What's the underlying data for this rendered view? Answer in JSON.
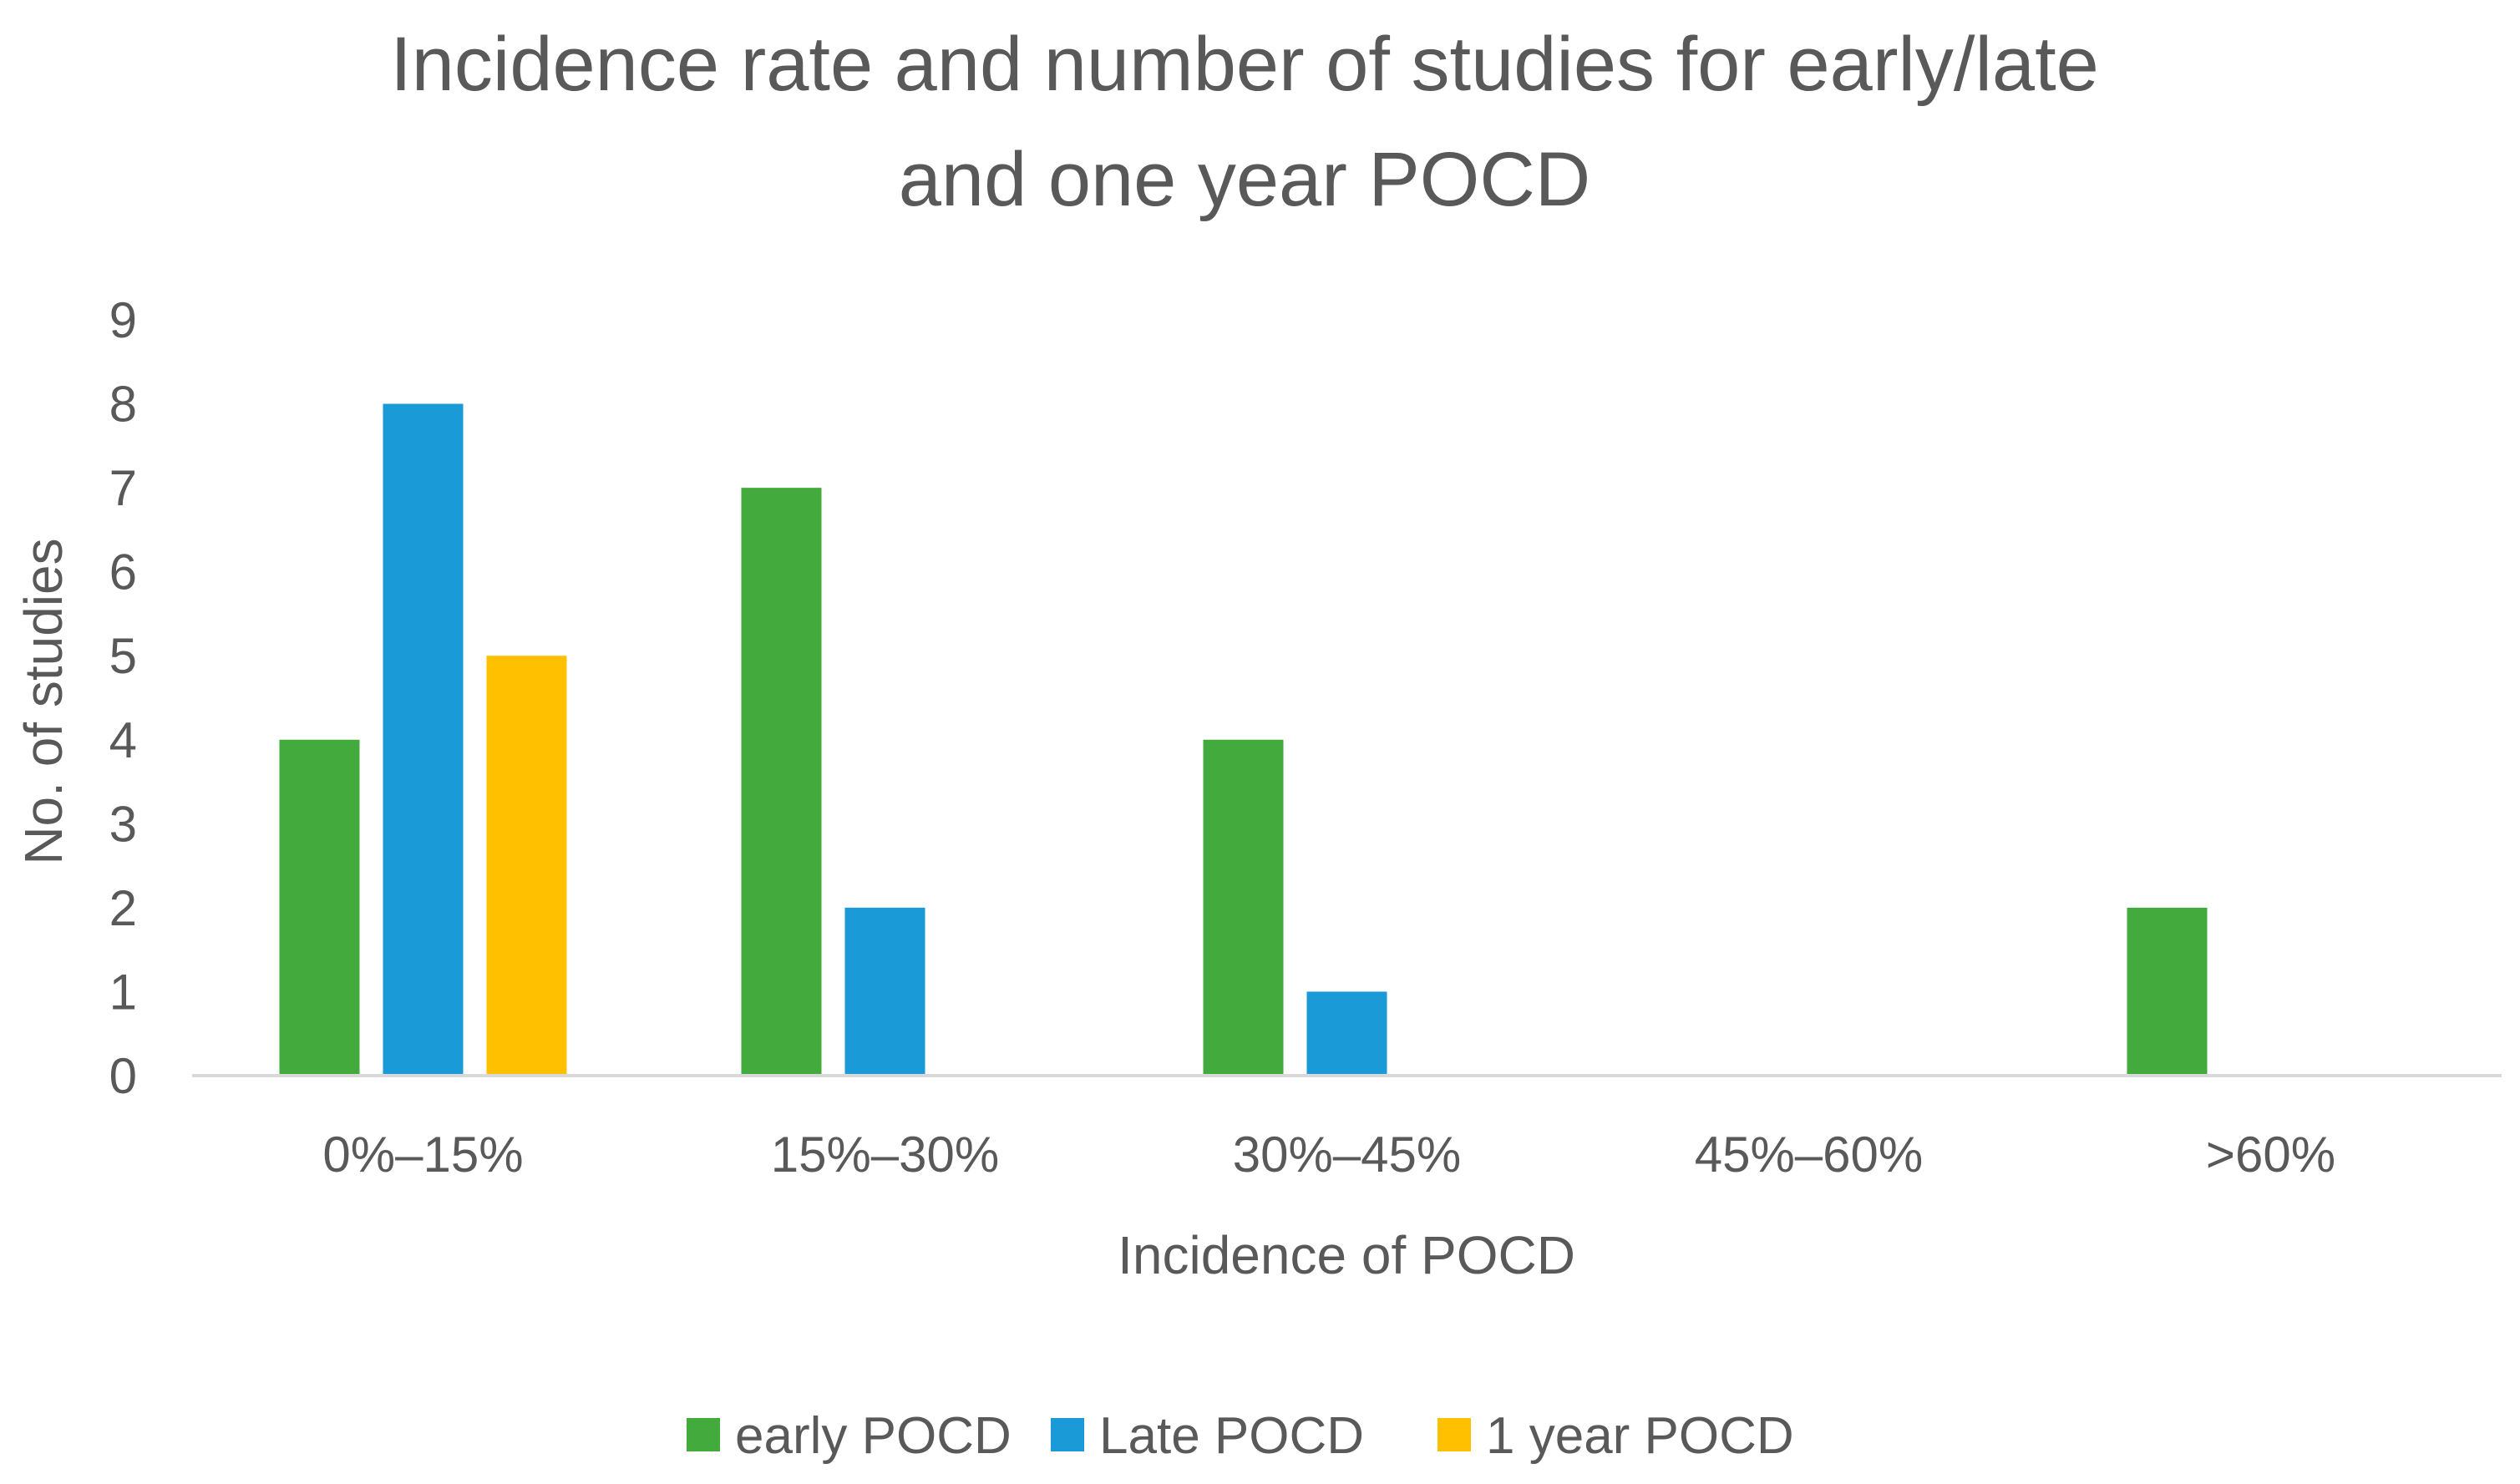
{
  "chart_data": {
    "type": "bar",
    "title": "Incidence rate and number of studies for early/late and one year POCD",
    "title_lines": [
      "Incidence rate and number of studies for early/late",
      "and one year POCD"
    ],
    "xlabel": "Incidence of POCD",
    "ylabel": "No. of studies",
    "ylim": [
      0,
      9
    ],
    "yticks": [
      "0",
      "1",
      "2",
      "3",
      "4",
      "5",
      "6",
      "7",
      "8",
      "9"
    ],
    "grid": false,
    "legend_position": "bottom",
    "categories": [
      "0%–15%",
      "15%–30%",
      "30%–45%",
      "45%–60%",
      ">60%"
    ],
    "series": [
      {
        "name": "early POCD",
        "color": "#43AB3E",
        "values": [
          4,
          7,
          4,
          0,
          2
        ]
      },
      {
        "name": "Late POCD",
        "color": "#1A9BD7",
        "values": [
          8,
          2,
          1,
          0,
          0
        ]
      },
      {
        "name": "1 year POCD",
        "color": "#FFC000",
        "values": [
          5,
          0,
          0,
          0,
          0
        ]
      }
    ],
    "axis_color": "#D9D9D9",
    "text_color": "#595959"
  }
}
